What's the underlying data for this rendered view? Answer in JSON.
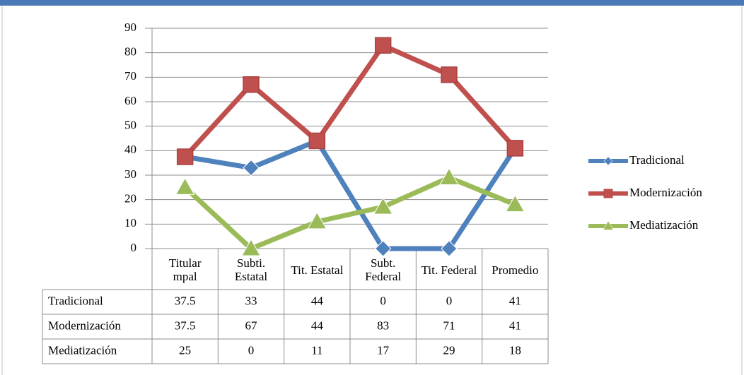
{
  "chart_data": {
    "type": "line",
    "categories": [
      "Titular mpal",
      "Subti. Estatal",
      "Tit. Estatal",
      "Subt. Federal",
      "Tit. Federal",
      "Promedio"
    ],
    "series": [
      {
        "name": "Tradicional",
        "color": "#4f81bd",
        "marker": "diamond",
        "values": [
          37.5,
          33,
          44,
          0,
          0,
          41
        ]
      },
      {
        "name": "Modernización",
        "color": "#c0504d",
        "marker": "square",
        "values": [
          37.5,
          67,
          44,
          83,
          71,
          41
        ]
      },
      {
        "name": "Mediatización",
        "color": "#9bbb59",
        "marker": "triangle",
        "values": [
          25,
          0,
          11,
          17,
          29,
          18
        ]
      }
    ],
    "ylim": [
      0,
      90
    ],
    "yticks": [
      0,
      10,
      20,
      30,
      40,
      50,
      60,
      70,
      80,
      90
    ],
    "grid": true,
    "legend": "right",
    "data_table": true
  }
}
